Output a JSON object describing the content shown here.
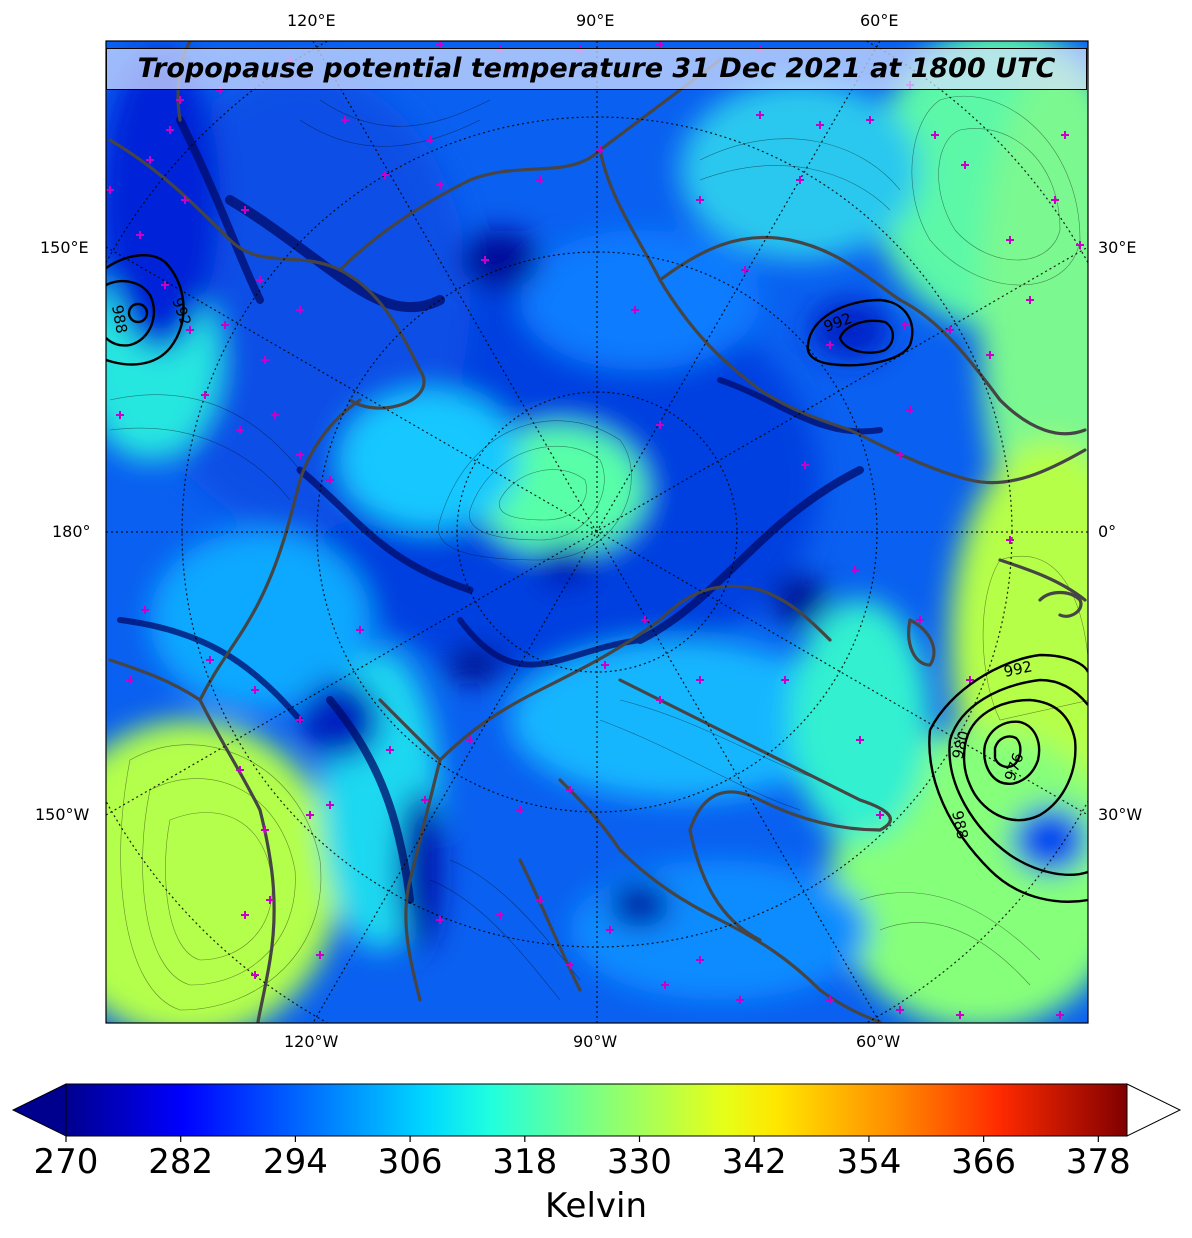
{
  "title": "Tropopause potential temperature 31 Dec 2021 at 1800 UTC",
  "map": {
    "projection": "north-polar-stereographic",
    "field": "tropopause potential temperature",
    "overlay": "mean sea level pressure contours (hPa)",
    "top_longitude_labels": [
      "120°E",
      "90°E",
      "60°E"
    ],
    "left_longitude_labels": [
      "150°E",
      "180°",
      "150°W"
    ],
    "right_longitude_labels": [
      "30°E",
      "0°",
      "30°W"
    ],
    "bottom_longitude_labels": [
      "120°W",
      "90°W",
      "60°W"
    ],
    "pressure_contour_labels": [
      {
        "label": "992",
        "region": "northeast-asia"
      },
      {
        "label": "988",
        "region": "northeast-asia"
      },
      {
        "label": "992",
        "region": "siberia"
      },
      {
        "label": "992",
        "region": "north-atlantic"
      },
      {
        "label": "980",
        "region": "north-atlantic"
      },
      {
        "label": "976",
        "region": "north-atlantic"
      },
      {
        "label": "988",
        "region": "north-atlantic"
      }
    ],
    "colors": {
      "coastline": "#454545",
      "contours": "#000000",
      "markers": "#c800c8"
    }
  },
  "colorbar": {
    "ticks": [
      "270",
      "282",
      "294",
      "306",
      "318",
      "330",
      "342",
      "354",
      "366",
      "378"
    ],
    "vmin": 270,
    "vmax": 381,
    "label": "Kelvin",
    "colormap": "jet",
    "extend": "both"
  }
}
